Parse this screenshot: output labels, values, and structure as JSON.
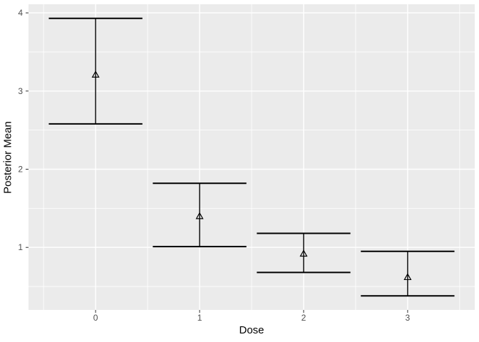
{
  "chart_data": {
    "type": "errorbar",
    "title": "",
    "xlabel": "Dose",
    "ylabel": "Posterior Mean",
    "x": [
      0,
      1,
      2,
      3
    ],
    "xticks": [
      "0",
      "1",
      "2",
      "3"
    ],
    "yticks": [
      "1",
      "2",
      "3",
      "4"
    ],
    "ytick_values": [
      1,
      2,
      3,
      4
    ],
    "series": [
      {
        "name": "Posterior Mean",
        "marker": "open-triangle",
        "values": [
          3.21,
          1.4,
          0.92,
          0.62
        ],
        "lower": [
          2.58,
          1.01,
          0.68,
          0.38
        ],
        "upper": [
          3.93,
          1.82,
          1.18,
          0.95
        ]
      }
    ],
    "xlim": [
      -0.645,
      3.645
    ],
    "ylim": [
      0.2,
      4.11
    ],
    "x_minor": [
      -0.5,
      0.5,
      1.5,
      2.5,
      3.5
    ],
    "y_minor": [
      0.5,
      1.5,
      2.5,
      3.5
    ],
    "errorbar_halfwidth": 0.45,
    "grid": "major-and-minor",
    "legend": "none",
    "style": "ggplot2-theme-grey",
    "colors": {
      "page_bg": "#FFFFFF",
      "panel_bg": "#EBEBEB",
      "grid": "#FFFFFF",
      "errorbar": "#000000",
      "marker": "#000000",
      "tick_mark": "#333333",
      "tick_label": "#4D4D4D",
      "axis_title": "#000000"
    }
  }
}
